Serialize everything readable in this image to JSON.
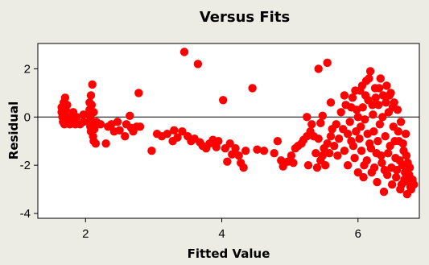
{
  "chart_data": {
    "type": "scatter",
    "title": "Versus Fits",
    "xlabel": "Fitted Value",
    "ylabel": "Residual",
    "xlim": [
      1.3,
      6.9
    ],
    "ylim": [
      -4.2,
      3.05
    ],
    "xticks": [
      2,
      4,
      6
    ],
    "yticks": [
      2,
      0,
      -2,
      -4
    ],
    "xtick_labels": [
      "2",
      "4",
      "6"
    ],
    "ytick_labels": [
      "2",
      "0",
      "-2",
      "-4"
    ],
    "reference_line_y": 0,
    "grid": false,
    "colors": {
      "points": "#FF0000",
      "background": "#ECECE5",
      "plot_area": "#FFFFFF",
      "axis": "#000000"
    },
    "series": [
      {
        "points": [
          [
            1.65,
            0.4
          ],
          [
            1.65,
            0.2
          ],
          [
            1.66,
            0.0
          ],
          [
            1.67,
            -0.2
          ],
          [
            1.68,
            0.1
          ],
          [
            1.68,
            0.6
          ],
          [
            1.69,
            -0.3
          ],
          [
            1.7,
            0.8
          ],
          [
            1.71,
            0.3
          ],
          [
            1.72,
            -0.1
          ],
          [
            1.73,
            0.5
          ],
          [
            1.75,
            0.0
          ],
          [
            1.77,
            -0.3
          ],
          [
            1.8,
            -0.1
          ],
          [
            1.82,
            0.2
          ],
          [
            1.85,
            -0.3
          ],
          [
            1.87,
            0.0
          ],
          [
            1.92,
            -0.3
          ],
          [
            1.97,
            -0.2
          ],
          [
            1.97,
            0.1
          ],
          [
            2.05,
            0.1
          ],
          [
            2.05,
            -0.2
          ],
          [
            2.06,
            0.6
          ],
          [
            2.06,
            0.3
          ],
          [
            2.07,
            -0.4
          ],
          [
            2.07,
            0.0
          ],
          [
            2.08,
            0.9
          ],
          [
            2.08,
            -0.6
          ],
          [
            2.09,
            0.5
          ],
          [
            2.1,
            -0.3
          ],
          [
            2.1,
            1.35
          ],
          [
            2.11,
            -0.8
          ],
          [
            2.12,
            0.2
          ],
          [
            2.12,
            -1.0
          ],
          [
            2.13,
            -0.5
          ],
          [
            2.15,
            -1.1
          ],
          [
            2.16,
            -0.2
          ],
          [
            2.22,
            -0.3
          ],
          [
            2.3,
            -1.1
          ],
          [
            2.33,
            -0.4
          ],
          [
            2.38,
            -0.3
          ],
          [
            2.42,
            -0.6
          ],
          [
            2.47,
            -0.2
          ],
          [
            2.5,
            -0.55
          ],
          [
            2.58,
            -0.8
          ],
          [
            2.6,
            -0.3
          ],
          [
            2.65,
            0.05
          ],
          [
            2.67,
            -0.45
          ],
          [
            2.7,
            -0.6
          ],
          [
            2.75,
            -0.4
          ],
          [
            2.78,
            1.0
          ],
          [
            2.8,
            -0.4
          ],
          [
            2.97,
            -1.4
          ],
          [
            3.05,
            -0.7
          ],
          [
            3.12,
            -0.8
          ],
          [
            3.2,
            -0.7
          ],
          [
            3.28,
            -1.0
          ],
          [
            3.3,
            -0.55
          ],
          [
            3.35,
            -0.85
          ],
          [
            3.42,
            -0.6
          ],
          [
            3.45,
            2.7
          ],
          [
            3.5,
            -0.8
          ],
          [
            3.55,
            -1.0
          ],
          [
            3.6,
            -0.9
          ],
          [
            3.65,
            2.2
          ],
          [
            3.68,
            -1.05
          ],
          [
            3.72,
            -1.2
          ],
          [
            3.77,
            -1.3
          ],
          [
            3.82,
            -1.1
          ],
          [
            3.87,
            -0.95
          ],
          [
            3.92,
            -1.25
          ],
          [
            3.95,
            -1.0
          ],
          [
            4.02,
            0.7
          ],
          [
            4.05,
            -1.3
          ],
          [
            4.08,
            -1.85
          ],
          [
            4.12,
            -1.1
          ],
          [
            4.15,
            -1.55
          ],
          [
            4.2,
            -1.3
          ],
          [
            4.25,
            -1.6
          ],
          [
            4.28,
            -1.9
          ],
          [
            4.32,
            -2.1
          ],
          [
            4.35,
            -1.4
          ],
          [
            4.45,
            1.2
          ],
          [
            4.52,
            -1.35
          ],
          [
            4.62,
            -1.4
          ],
          [
            4.77,
            -1.5
          ],
          [
            4.82,
            -1.0
          ],
          [
            4.87,
            -1.8
          ],
          [
            4.9,
            -2.05
          ],
          [
            4.97,
            -1.85
          ],
          [
            5.02,
            -1.6
          ],
          [
            5.05,
            -1.9
          ],
          [
            5.08,
            -1.3
          ],
          [
            5.12,
            -1.2
          ],
          [
            5.17,
            -1.1
          ],
          [
            5.2,
            -0.95
          ],
          [
            5.25,
            -0.8
          ],
          [
            5.27,
            -2.0
          ],
          [
            5.3,
            -0.6
          ],
          [
            5.32,
            -0.3
          ],
          [
            5.35,
            -0.8
          ],
          [
            5.38,
            -1.5
          ],
          [
            5.4,
            -2.1
          ],
          [
            5.42,
            -0.9
          ],
          [
            5.45,
            -1.8
          ],
          [
            5.48,
            -1.6
          ],
          [
            5.5,
            -1.3
          ],
          [
            5.52,
            -2.0
          ],
          [
            5.55,
            -1.1
          ],
          [
            5.58,
            -1.5
          ],
          [
            5.6,
            -0.8
          ],
          [
            5.62,
            -0.5
          ],
          [
            5.65,
            -1.2
          ],
          [
            5.68,
            -0.3
          ],
          [
            5.7,
            -1.6
          ],
          [
            5.72,
            -0.9
          ],
          [
            5.25,
            0.0
          ],
          [
            5.42,
            2.0
          ],
          [
            5.55,
            2.25
          ],
          [
            5.6,
            0.6
          ],
          [
            5.45,
            -0.25
          ],
          [
            5.48,
            0.05
          ],
          [
            5.75,
            0.2
          ],
          [
            5.78,
            -0.5
          ],
          [
            5.8,
            -1.4
          ],
          [
            5.82,
            0.5
          ],
          [
            5.85,
            -2.0
          ],
          [
            5.88,
            -0.2
          ],
          [
            5.9,
            -1.0
          ],
          [
            5.92,
            0.8
          ],
          [
            5.95,
            -1.7
          ],
          [
            5.97,
            -0.6
          ],
          [
            5.98,
            0.3
          ],
          [
            6.0,
            -2.3
          ],
          [
            6.02,
            -0.9
          ],
          [
            6.03,
            1.1
          ],
          [
            6.05,
            -1.4
          ],
          [
            6.07,
            0.4
          ],
          [
            6.08,
            -2.5
          ],
          [
            6.1,
            -0.1
          ],
          [
            6.12,
            1.5
          ],
          [
            6.13,
            -1.8
          ],
          [
            6.15,
            0.7
          ],
          [
            6.17,
            -1.1
          ],
          [
            6.18,
            1.9
          ],
          [
            6.2,
            -2.3
          ],
          [
            6.22,
            0.1
          ],
          [
            6.23,
            -0.6
          ],
          [
            6.25,
            1.2
          ],
          [
            6.27,
            -1.5
          ],
          [
            6.28,
            -2.7
          ],
          [
            6.3,
            0.5
          ],
          [
            6.32,
            -0.3
          ],
          [
            6.33,
            1.6
          ],
          [
            6.35,
            -1.9
          ],
          [
            6.37,
            0.9
          ],
          [
            6.38,
            -3.1
          ],
          [
            6.4,
            -0.8
          ],
          [
            6.42,
            1.3
          ],
          [
            6.43,
            -2.4
          ],
          [
            6.45,
            0.2
          ],
          [
            6.47,
            -1.2
          ],
          [
            6.48,
            1.0
          ],
          [
            6.5,
            -2.8
          ],
          [
            6.52,
            -0.4
          ],
          [
            6.53,
            0.6
          ],
          [
            6.55,
            -1.7
          ],
          [
            6.57,
            -2.2
          ],
          [
            6.58,
            0.3
          ],
          [
            6.6,
            -1.0
          ],
          [
            6.62,
            -3.0
          ],
          [
            6.63,
            -0.2
          ],
          [
            6.65,
            -2.0
          ],
          [
            6.67,
            -1.4
          ],
          [
            6.68,
            -2.6
          ],
          [
            6.7,
            -0.7
          ],
          [
            6.72,
            -3.2
          ],
          [
            6.73,
            -1.9
          ],
          [
            6.75,
            -2.4
          ],
          [
            6.77,
            -2.9
          ],
          [
            6.8,
            -2.6
          ],
          [
            5.8,
            0.9
          ],
          [
            5.85,
            -0.7
          ],
          [
            5.9,
            0.4
          ],
          [
            5.93,
            -1.2
          ],
          [
            5.96,
            1.1
          ],
          [
            6.0,
            0.0
          ],
          [
            6.04,
            -0.4
          ],
          [
            6.06,
            1.3
          ],
          [
            6.09,
            -2.0
          ],
          [
            6.11,
            0.9
          ],
          [
            6.14,
            -0.7
          ],
          [
            6.16,
            1.6
          ],
          [
            6.19,
            -1.3
          ],
          [
            6.21,
            0.5
          ],
          [
            6.24,
            -2.1
          ],
          [
            6.26,
            0.8
          ],
          [
            6.29,
            -1.0
          ],
          [
            6.31,
            1.2
          ],
          [
            6.34,
            -1.6
          ],
          [
            6.36,
            0.0
          ],
          [
            6.39,
            -2.2
          ],
          [
            6.41,
            0.6
          ],
          [
            6.44,
            -1.5
          ],
          [
            6.46,
            0.9
          ],
          [
            6.49,
            -2.1
          ],
          [
            6.51,
            0.4
          ],
          [
            6.54,
            -1.0
          ],
          [
            6.56,
            -2.5
          ],
          [
            6.59,
            -0.6
          ],
          [
            6.61,
            -1.8
          ],
          [
            6.64,
            -2.8
          ],
          [
            6.66,
            -1.1
          ],
          [
            6.69,
            -2.3
          ],
          [
            6.71,
            -1.6
          ],
          [
            6.74,
            -2.7
          ],
          [
            6.76,
            -2.1
          ],
          [
            6.78,
            -3.0
          ],
          [
            6.82,
            -2.8
          ]
        ]
      }
    ]
  }
}
